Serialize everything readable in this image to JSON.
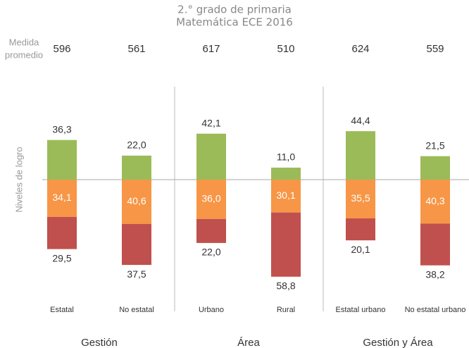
{
  "chart_data": {
    "type": "diverging-stacked-bar",
    "title": [
      "2.° grado de primaria",
      "Matemática ECE 2016"
    ],
    "average_label": [
      "Medida",
      "promedio"
    ],
    "y_label": "Niveles de logro",
    "categories": [
      "Estatal",
      "No estatal",
      "Urbano",
      "Rural",
      "Estatal urbano",
      "No estatal urbano"
    ],
    "averages": [
      596,
      561,
      617,
      510,
      624,
      559
    ],
    "groups": [
      {
        "label": "Gestión",
        "from": 0,
        "to": 1
      },
      {
        "label": "Área",
        "from": 2,
        "to": 3
      },
      {
        "label": "Gestión y Área",
        "from": 4,
        "to": 5
      }
    ],
    "series": [
      {
        "color": "#9bbb59",
        "direction": "up",
        "values": [
          36.3,
          22.0,
          42.1,
          11.0,
          44.4,
          21.5
        ],
        "value_labels": [
          "36,3",
          "22,0",
          "42,1",
          "11,0",
          "44,4",
          "21,5"
        ]
      },
      {
        "color": "#f79646",
        "direction": "down",
        "values": [
          34.1,
          40.6,
          36.0,
          30.1,
          35.5,
          40.3
        ],
        "value_labels": [
          "34,1",
          "40,6",
          "36,0",
          "30,1",
          "35,5",
          "40,3"
        ]
      },
      {
        "color": "#c0504d",
        "direction": "down",
        "values": [
          29.5,
          37.5,
          22.0,
          58.8,
          20.1,
          38.2
        ],
        "value_labels": [
          "29,5",
          "37,5",
          "22,0",
          "58,8",
          "20,1",
          "38,2"
        ]
      }
    ]
  }
}
